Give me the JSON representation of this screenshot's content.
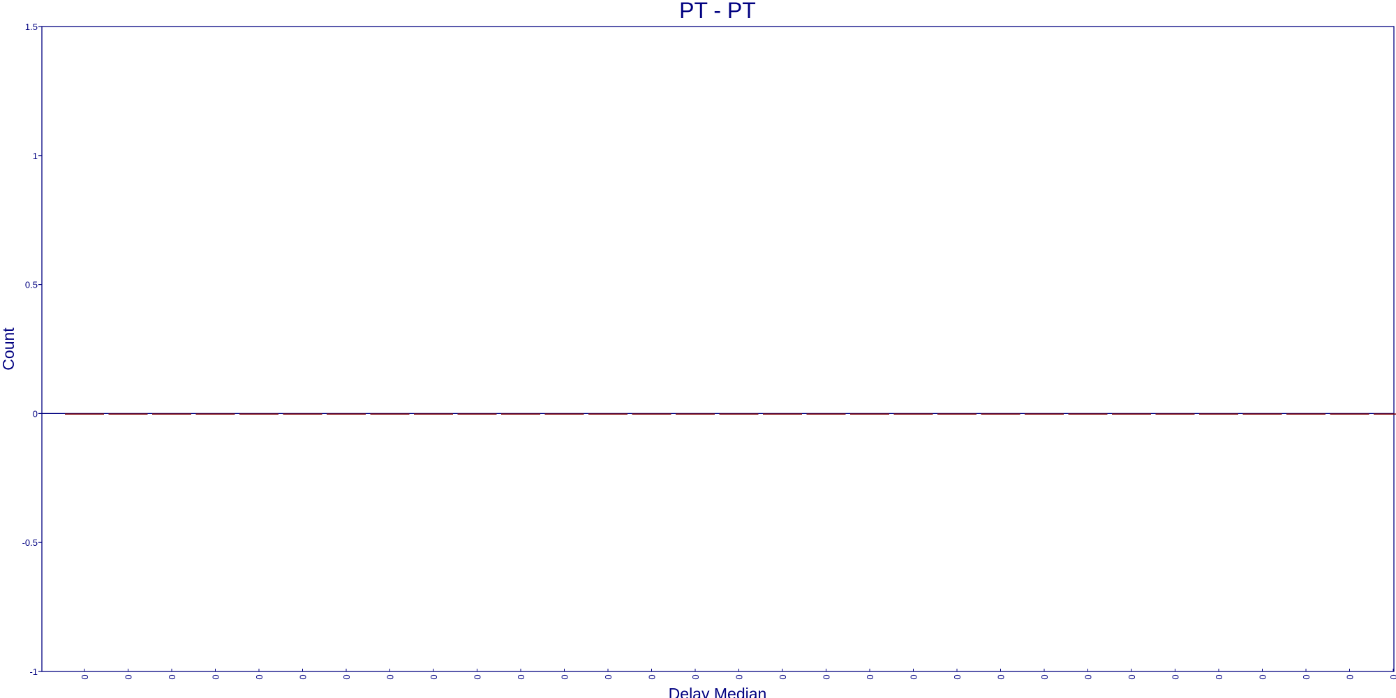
{
  "chart_data": {
    "type": "bar",
    "title": "PT - PT",
    "xlabel": "Delay Median",
    "ylabel": "Count",
    "ylim": [
      -1,
      1.5
    ],
    "yticks": [
      "1.5",
      "1",
      "0.5",
      "0",
      "-0.5",
      "-1"
    ],
    "grid": false,
    "categories": [
      "0",
      "0",
      "0",
      "0",
      "0",
      "0",
      "0",
      "0",
      "0",
      "0",
      "0",
      "0",
      "0",
      "0",
      "0",
      "0",
      "0",
      "0",
      "0",
      "0",
      "0",
      "0",
      "0",
      "0",
      "0",
      "0",
      "0",
      "0",
      "0",
      "0",
      "0"
    ],
    "values": [
      0,
      0,
      0,
      0,
      0,
      0,
      0,
      0,
      0,
      0,
      0,
      0,
      0,
      0,
      0,
      0,
      0,
      0,
      0,
      0,
      0,
      0,
      0,
      0,
      0,
      0,
      0,
      0,
      0,
      0,
      0
    ],
    "colors": {
      "axis": "#000080",
      "bar": "#800000",
      "text": "#000080"
    }
  }
}
